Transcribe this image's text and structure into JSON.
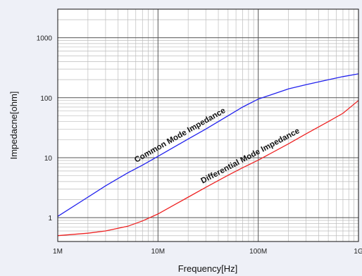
{
  "chart_data": {
    "type": "line",
    "title": "",
    "xlabel": "Frequency[Hz]",
    "ylabel": "Impedacne[ohm]",
    "x_scale": "log",
    "y_scale": "log",
    "xlim": [
      1000000,
      1000000000
    ],
    "ylim": [
      0.4,
      3000
    ],
    "x_ticks": [
      {
        "value": 1000000,
        "label": "1M"
      },
      {
        "value": 10000000,
        "label": "10M"
      },
      {
        "value": 100000000,
        "label": "100M"
      },
      {
        "value": 1000000000,
        "label": "1G"
      }
    ],
    "y_ticks": [
      {
        "value": 1,
        "label": "1"
      },
      {
        "value": 10,
        "label": "10"
      },
      {
        "value": 100,
        "label": "100"
      },
      {
        "value": 1000,
        "label": "1000"
      }
    ],
    "grid": true,
    "legend": "none",
    "series": [
      {
        "name": "Common Mode Impedance",
        "color": "#2222ee",
        "x": [
          1000000,
          2000000,
          3000000,
          5000000,
          7000000,
          10000000,
          20000000,
          30000000,
          50000000,
          70000000,
          100000000,
          200000000,
          300000000,
          500000000,
          700000000,
          1000000000
        ],
        "y": [
          1.05,
          2.2,
          3.4,
          5.6,
          7.5,
          10.5,
          20.5,
          30,
          50,
          70,
          95,
          140,
          165,
          200,
          225,
          250
        ]
      },
      {
        "name": "Differential Mode Impedance",
        "color": "#ee2222",
        "x": [
          1000000,
          2000000,
          3000000,
          5000000,
          7000000,
          10000000,
          20000000,
          30000000,
          50000000,
          70000000,
          100000000,
          200000000,
          300000000,
          500000000,
          700000000,
          1000000000
        ],
        "y": [
          0.5,
          0.55,
          0.6,
          0.72,
          0.88,
          1.15,
          2.2,
          3.2,
          5.1,
          6.8,
          9.1,
          17,
          25,
          40,
          55,
          90
        ]
      }
    ],
    "annotations": [
      {
        "text": "Common Mode Impedance",
        "series": 0,
        "at_x": 18000000
      },
      {
        "text": "Differential Mode Impedance",
        "series": 1,
        "at_x": 90000000
      }
    ]
  }
}
